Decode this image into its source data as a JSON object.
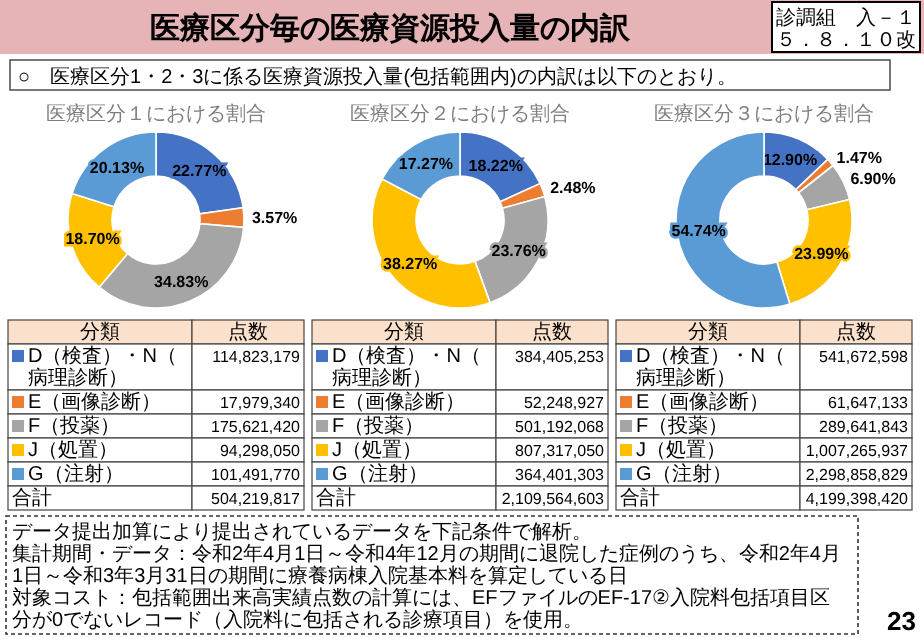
{
  "chart_data": [
    {
      "type": "donut",
      "title": "医療区分１における割合",
      "categories": [
        "D（検査）・N（病理診断）",
        "E（画像診断）",
        "F（投薬）",
        "J（処置）",
        "G（注射）"
      ],
      "values": [
        22.77,
        3.57,
        34.83,
        18.7,
        20.13
      ],
      "colors": [
        "#4472c4",
        "#ed7d31",
        "#a5a5a5",
        "#ffc000",
        "#5b9bd5"
      ],
      "value_labels": [
        "22.77%",
        "3.57%",
        "34.83%",
        "18.70%",
        "20.13%"
      ],
      "legend": "bottom",
      "annotations": [
        "分類",
        "点数",
        "114,823,179",
        "17,979,340",
        "175,621,420",
        "94,298,050",
        "101,491,770",
        "合計",
        "504,219,817",
        "医療区分毎の医療資源投入量の内訳",
        "診調組　入－１",
        "５．８．１０改",
        "○　医療区分1・2・3に係る医療資源投入量(包括範囲内)の内訳は以下のとおり。",
        "データ提出加算により提出されているデータを下記条件で解析。",
        "集計期間・データ：令和2年4月1日～令和4年12月の期間に退院した症例のうち、令和2年4月1日～令和3年3月31日の期間に療養病棟入院基本料を算定している日",
        "対象コスト：包括範囲出来高実績点数の計算には、EFファイルのEF-17②入院料包括項目区分が0でないレコード（入院料に包括される診療項目）を使用。",
        "23"
      ]
    },
    {
      "type": "donut",
      "title": "医療区分２における割合",
      "categories": [
        "D（検査）・N（病理診断）",
        "E（画像診断）",
        "F（投薬）",
        "J（処置）",
        "G（注射）"
      ],
      "values": [
        18.22,
        2.48,
        23.76,
        38.27,
        17.27
      ],
      "colors": [
        "#4472c4",
        "#ed7d31",
        "#a5a5a5",
        "#ffc000",
        "#5b9bd5"
      ],
      "value_labels": [
        "18.22%",
        "2.48%",
        "23.76%",
        "38.27%",
        "17.27%"
      ],
      "legend": "bottom",
      "annotations": [
        "分類",
        "点数",
        "384,405,253",
        "52,248,927",
        "501,192,068",
        "807,317,050",
        "364,401,303",
        "合計",
        "2,109,564,603"
      ]
    },
    {
      "type": "donut",
      "title": "医療区分３における割合",
      "categories": [
        "D（検査）・N（病理診断）",
        "E（画像診断）",
        "F（投薬）",
        "J（処置）",
        "G（注射）"
      ],
      "values": [
        12.9,
        1.47,
        6.9,
        23.99,
        54.74
      ],
      "colors": [
        "#4472c4",
        "#ed7d31",
        "#a5a5a5",
        "#ffc000",
        "#5b9bd5"
      ],
      "value_labels": [
        "12.90%",
        "1.47%",
        "6.90%",
        "23.99%",
        "54.74%"
      ],
      "legend": "bottom",
      "annotations": [
        "分類",
        "点数",
        "541,672,598",
        "61,647,133",
        "289,641,843",
        "1,007,265,937",
        "2,298,858,829",
        "合計",
        "4,199,398,420"
      ]
    }
  ]
}
